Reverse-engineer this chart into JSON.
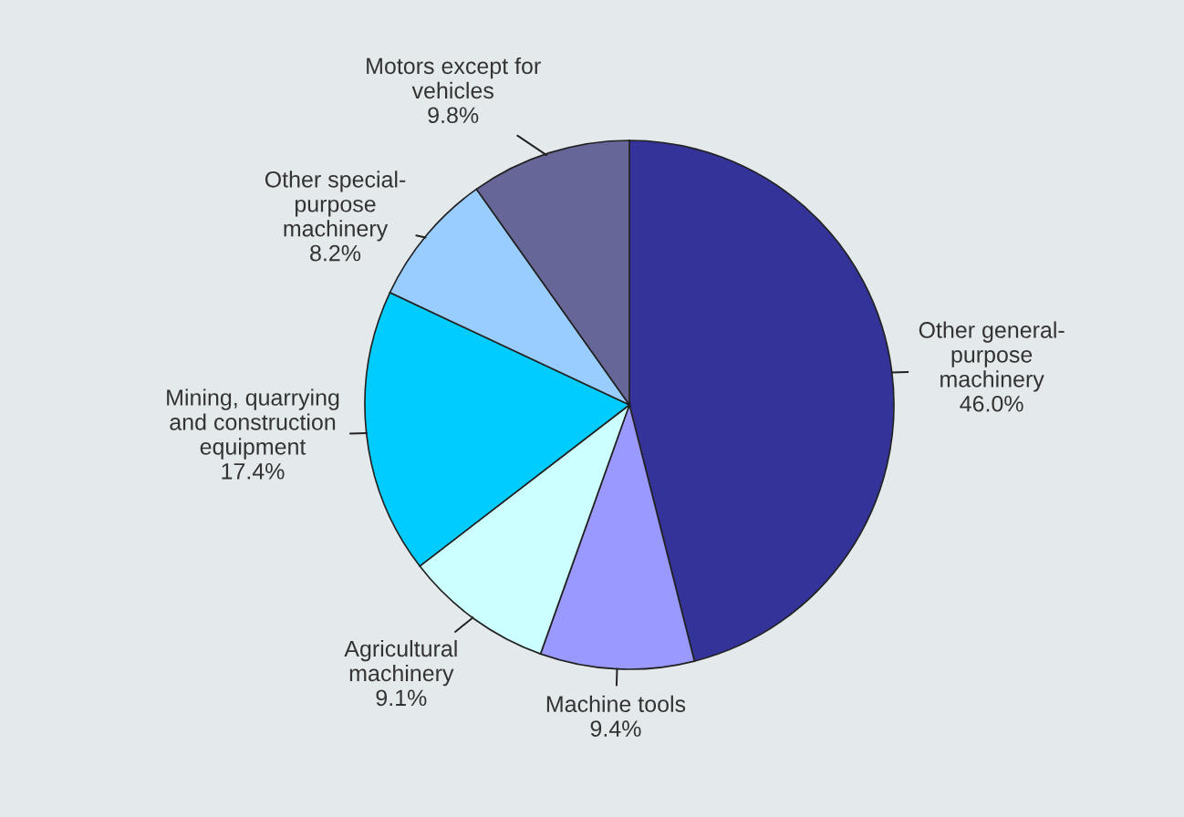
{
  "chart_data": {
    "type": "pie",
    "categories": [
      "Other general-\npurpose\nmachinery",
      "Machine tools",
      "Agricultural\nmachinery",
      "Mining, quarrying\nand construction\nequipment",
      "Other special-\npurpose\nmachinery",
      "Motors except for\nvehicles"
    ],
    "values": [
      46.0,
      9.4,
      9.1,
      17.4,
      8.2,
      9.8
    ],
    "colors": [
      "#333399",
      "#9999ff",
      "#ccffff",
      "#00ccff",
      "#99ccff",
      "#666699"
    ],
    "value_labels": [
      "46.0%",
      "9.4%",
      "9.1%",
      "17.4%",
      "8.2%",
      "9.8%"
    ]
  }
}
